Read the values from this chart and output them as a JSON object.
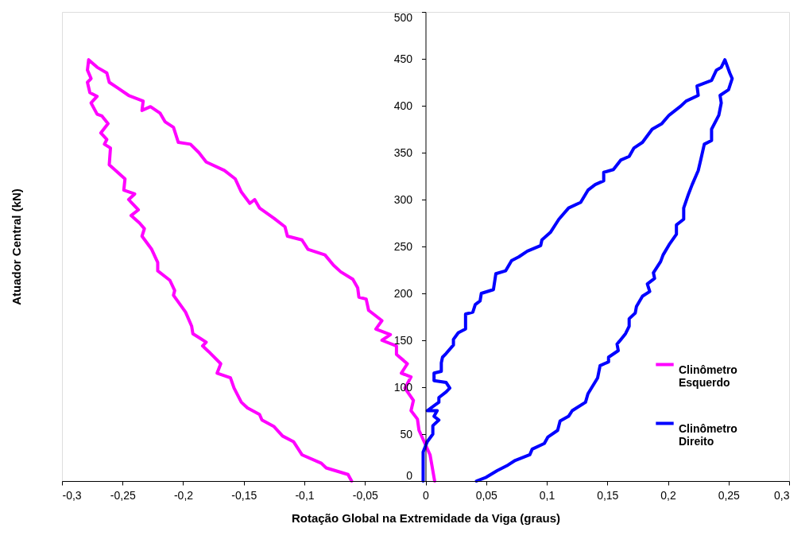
{
  "chart_data": {
    "type": "line",
    "xlabel": "Rotação Global na Extremidade da Viga (graus)",
    "ylabel": "Atuador Central (kN)",
    "xlim": [
      -0.3,
      0.3
    ],
    "xticks": [
      {
        "value": -0.3,
        "label": "-0,3"
      },
      {
        "value": -0.25,
        "label": "-0,25"
      },
      {
        "value": -0.2,
        "label": "-0,2"
      },
      {
        "value": -0.15,
        "label": "-0,15"
      },
      {
        "value": -0.1,
        "label": "-0,1"
      },
      {
        "value": -0.05,
        "label": "-0,05"
      },
      0,
      {
        "value": 0.05,
        "label": "0,05"
      },
      {
        "value": 0.1,
        "label": "0,1"
      },
      {
        "value": 0.15,
        "label": "0,15"
      },
      {
        "value": 0.2,
        "label": "0,2"
      },
      {
        "value": 0.25,
        "label": "0,25"
      },
      {
        "value": 0.3,
        "label": "0,3"
      }
    ],
    "ylim": [
      0,
      500
    ],
    "yticks": [
      0,
      50,
      100,
      150,
      200,
      250,
      300,
      350,
      400,
      450,
      500
    ],
    "grid": false,
    "legend": "right",
    "marker": "none",
    "line_style": "solid",
    "series": [
      {
        "name": "Clinômetro Esquerdo",
        "color": "#ff00ff",
        "x": [
          0.0075,
          0.0037,
          -0.0054,
          -0.0067,
          -0.012,
          -0.01,
          -0.017,
          -0.012,
          -0.02,
          -0.015,
          -0.024,
          -0.024,
          -0.036,
          -0.029,
          -0.041,
          -0.036,
          -0.047,
          -0.049,
          -0.055,
          -0.056,
          -0.06,
          -0.07,
          -0.076,
          -0.083,
          -0.097,
          -0.102,
          -0.114,
          -0.116,
          -0.125,
          -0.137,
          -0.141,
          -0.145,
          -0.152,
          -0.157,
          -0.166,
          -0.181,
          -0.187,
          -0.194,
          -0.204,
          -0.208,
          -0.215,
          -0.219,
          -0.227,
          -0.234,
          -0.233,
          -0.245,
          -0.254,
          -0.261,
          -0.263,
          -0.271,
          -0.278,
          -0.279,
          -0.276,
          -0.279,
          -0.277,
          -0.271,
          -0.276,
          -0.271,
          -0.267,
          -0.262,
          -0.268,
          -0.263,
          -0.265,
          -0.26,
          -0.261,
          -0.248,
          -0.249,
          -0.24,
          -0.245,
          -0.237,
          -0.243,
          -0.236,
          -0.232,
          -0.234,
          -0.226,
          -0.221,
          -0.221,
          -0.211,
          -0.207,
          -0.208,
          -0.198,
          -0.193,
          -0.192,
          -0.181,
          -0.184,
          -0.179,
          -0.169,
          -0.172,
          -0.161,
          -0.158,
          -0.152,
          -0.147,
          -0.137,
          -0.135,
          -0.125,
          -0.118,
          -0.109,
          -0.102,
          -0.086,
          -0.082,
          -0.064,
          -0.061
        ],
        "values": [
          0,
          28,
          54,
          66,
          75,
          86,
          99,
          111,
          115,
          125,
          135,
          144,
          150,
          156,
          162,
          171,
          182,
          194,
          196,
          206,
          215,
          223,
          230,
          241,
          247,
          257,
          261,
          271,
          280,
          291,
          300,
          296,
          308,
          322,
          331,
          340,
          350,
          359,
          361,
          377,
          383,
          392,
          399,
          395,
          405,
          411,
          419,
          425,
          435,
          441,
          449,
          438,
          429,
          425,
          414,
          410,
          403,
          391,
          389,
          381,
          371,
          364,
          359,
          355,
          337,
          322,
          310,
          306,
          300,
          289,
          283,
          275,
          269,
          261,
          247,
          233,
          224,
          214,
          203,
          198,
          180,
          165,
          157,
          148,
          144,
          138,
          125,
          115,
          110,
          99,
          84,
          78,
          71,
          65,
          58,
          48,
          42,
          28,
          19,
          14,
          7,
          0
        ]
      },
      {
        "name": "Clinômetro Direito",
        "color": "#0000ff",
        "x": [
          -0.002,
          -0.002,
          0.0014,
          0.006,
          0.006,
          0.011,
          0.007,
          0.0096,
          0.0014,
          0.011,
          0.011,
          0.017,
          0.02,
          0.017,
          0.007,
          0.007,
          0.013,
          0.013,
          0.014,
          0.017,
          0.023,
          0.023,
          0.027,
          0.033,
          0.033,
          0.039,
          0.041,
          0.045,
          0.046,
          0.056,
          0.058,
          0.066,
          0.071,
          0.077,
          0.084,
          0.095,
          0.096,
          0.103,
          0.11,
          0.118,
          0.128,
          0.134,
          0.14,
          0.147,
          0.147,
          0.155,
          0.161,
          0.168,
          0.172,
          0.179,
          0.187,
          0.195,
          0.201,
          0.21,
          0.215,
          0.225,
          0.224,
          0.236,
          0.24,
          0.244,
          0.247,
          0.251,
          0.253,
          0.25,
          0.243,
          0.244,
          0.242,
          0.236,
          0.236,
          0.23,
          0.227,
          0.225,
          0.22,
          0.217,
          0.213,
          0.213,
          0.207,
          0.207,
          0.201,
          0.196,
          0.194,
          0.188,
          0.189,
          0.183,
          0.185,
          0.179,
          0.174,
          0.173,
          0.168,
          0.168,
          0.165,
          0.16,
          0.158,
          0.159,
          0.151,
          0.151,
          0.144,
          0.142,
          0.134,
          0.132,
          0.121,
          0.118,
          0.111,
          0.109,
          0.101,
          0.098,
          0.088,
          0.086,
          0.074,
          0.068,
          0.059,
          0.05,
          0.042
        ],
        "values": [
          0,
          31,
          42,
          50,
          59,
          65,
          69,
          75,
          75,
          84,
          89,
          95,
          99,
          105,
          107,
          115,
          117,
          126,
          132,
          136,
          145,
          151,
          158,
          162,
          178,
          180,
          188,
          192,
          200,
          204,
          221,
          224,
          235,
          239,
          245,
          251,
          257,
          265,
          279,
          291,
          297,
          310,
          316,
          320,
          329,
          332,
          342,
          346,
          355,
          361,
          375,
          381,
          390,
          399,
          405,
          411,
          421,
          427,
          438,
          441,
          449,
          435,
          429,
          417,
          411,
          403,
          390,
          375,
          363,
          359,
          342,
          331,
          316,
          306,
          291,
          279,
          273,
          263,
          252,
          241,
          234,
          222,
          216,
          210,
          202,
          197,
          186,
          179,
          173,
          165,
          157,
          149,
          146,
          139,
          132,
          127,
          123,
          110,
          93,
          84,
          75,
          69,
          64,
          54,
          47,
          40,
          34,
          28,
          22,
          17,
          11,
          4,
          0
        ]
      }
    ]
  }
}
